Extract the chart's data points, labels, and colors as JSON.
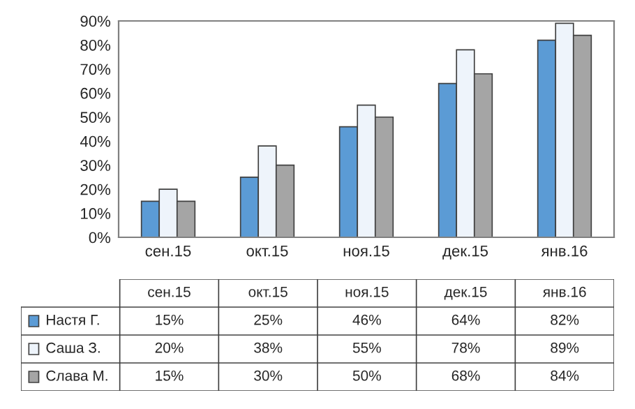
{
  "chart_data": {
    "type": "bar",
    "categories": [
      "сен.15",
      "окт.15",
      "ноя.15",
      "дек.15",
      "янв.16"
    ],
    "series": [
      {
        "name": "Настя Г.",
        "color": "#5b9bd5",
        "values": [
          15,
          25,
          46,
          64,
          82
        ]
      },
      {
        "name": "Саша З.",
        "color": "#eef4fb",
        "values": [
          20,
          38,
          55,
          78,
          89
        ]
      },
      {
        "name": "Слава М.",
        "color": "#a5a5a5",
        "values": [
          15,
          30,
          50,
          68,
          84
        ]
      }
    ],
    "ylim": [
      0,
      90
    ],
    "yticks": [
      {
        "value": 0,
        "label": "0%"
      },
      {
        "value": 10,
        "label": "10%"
      },
      {
        "value": 20,
        "label": "20%"
      },
      {
        "value": 30,
        "label": "30%"
      },
      {
        "value": 40,
        "label": "40%"
      },
      {
        "value": 50,
        "label": "50%"
      },
      {
        "value": 60,
        "label": "60%"
      },
      {
        "value": 70,
        "label": "70%"
      },
      {
        "value": 80,
        "label": "80%"
      },
      {
        "value": 90,
        "label": "90%"
      }
    ],
    "value_labels": [
      [
        "15%",
        "25%",
        "46%",
        "64%",
        "82%"
      ],
      [
        "20%",
        "38%",
        "55%",
        "78%",
        "89%"
      ],
      [
        "15%",
        "30%",
        "50%",
        "68%",
        "84%"
      ]
    ],
    "legend": "bottom",
    "grid": false
  }
}
